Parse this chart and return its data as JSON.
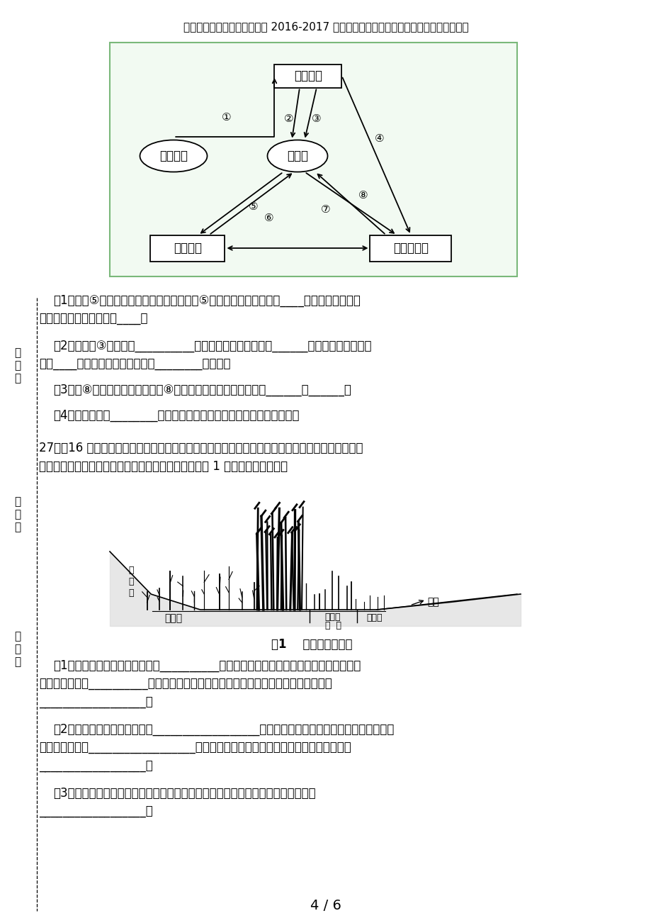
{
  "title_normal": "甘肃省天水市清水县第六中学 ",
  "title_bold": "2016-2017",
  "title_rest": " 学年高二生物上学期期末考试试题文（无答案）",
  "page_indicator": "4 / 6",
  "background_color": "#ffffff",
  "diagram_border_color": "#8fbc8f",
  "q1_line1": "（1）图中⑤表示的物质可能是淋巴因子，若⑤是淋巴因子，则它是由____细胞释放的，该物",
  "q1_line2": "质在体液免疫中的作用是____。",
  "q2_line1": "（2）图中的③代表的是__________，它可与突触后膜表面的______结合，引起下一个神",
  "q2_line2": "经元____，这也反映出细胞膜具有________的功能。",
  "q3_line1": "（3）若⑧表示促甲状腺激素，对⑧的分泌具有调节作用的激素是______和______。",
  "q4_line1": "（4）图示表明，________调节网络是机体维持内环境稳态的主要机制。",
  "q27_intro1": "27．（16 分）鄱黄长江大桥下的湿地是由长江携带的泥沙长期淤积逐渐形成的，将该湿地由近水边",
  "q27_intro2": "到岸边分为光滩区、近水缓冲区、核心区等区域，如图 1 所示。据图回答问题",
  "fig_caption": "图1    湿地剖向示意图",
  "q27_1a": "（1）该湿地群落的演替过程属于__________，从光滩区到核心区这几个区域的不同具体体",
  "q27_1b": "现在空间结构的__________方向上。区别核心区和近水缓冲区这两个群落的重要特征是",
  "q27_1c": "__________________。",
  "q27_2a": "（2）种群最基本的数量特征是__________________，调查核心区或近水缓冲区的芦苇种群数量",
  "q27_2b": "最常用的方法是__________________。描述芦苇种群数量变化时建立的数学模型应该是",
  "q27_2c": "__________________。",
  "q27_3a": "（3）在统计不同区域的植物盖度（表示植被的茂密程度）时，取样的关键是要做到",
  "q27_3b": "__________________。",
  "margin_labels": [
    "考",
    "场",
    "：",
    " ",
    " ",
    " ",
    "考",
    "号",
    "：",
    " ",
    " ",
    " ",
    "姓",
    "名",
    "："
  ],
  "margin_labels2": [
    "考",
    "场",
    "："
  ],
  "margin_labels3": [
    "考",
    "号",
    "："
  ],
  "margin_labels4": [
    "姓",
    "名",
    "："
  ]
}
